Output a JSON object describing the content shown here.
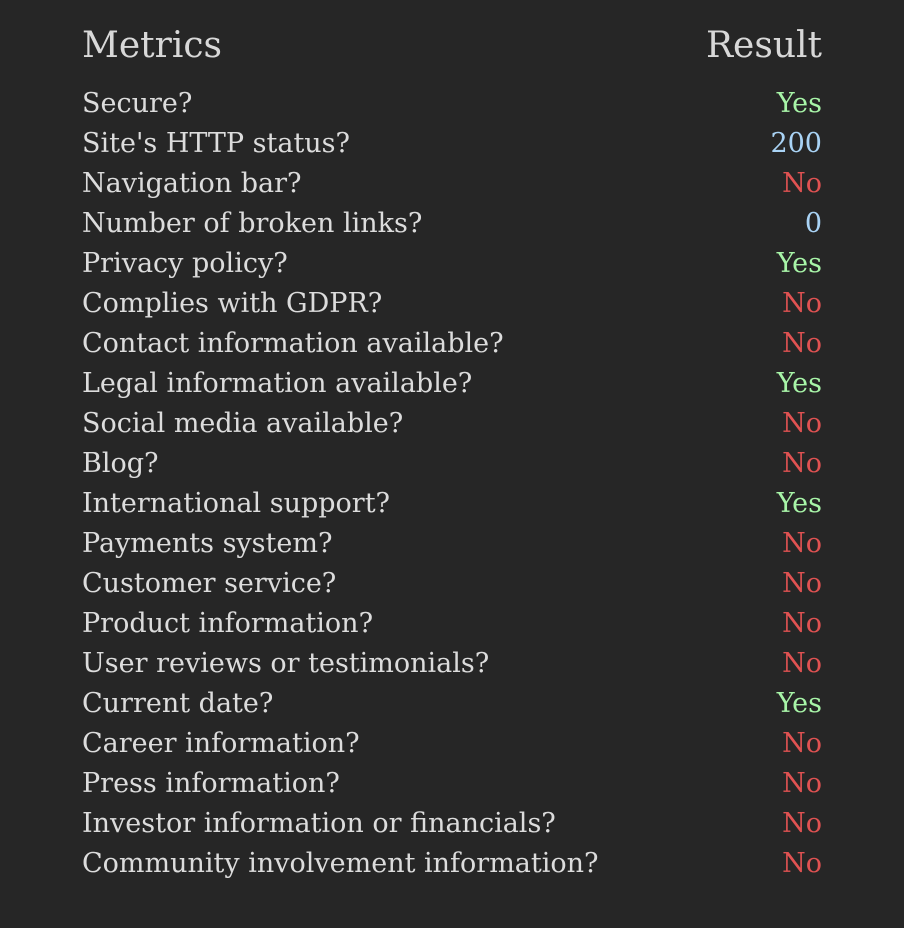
{
  "header": {
    "metrics_label": "Metrics",
    "result_label": "Result"
  },
  "colors": {
    "background": "#262626",
    "text": "#dcdcdc",
    "yes": "#a8f5a8",
    "no": "#e05252",
    "number": "#a9d3f5"
  },
  "rows": [
    {
      "metric": "Secure?",
      "result": "Yes",
      "kind": "yes"
    },
    {
      "metric": "Site's HTTP status?",
      "result": "200",
      "kind": "num"
    },
    {
      "metric": "Navigation bar?",
      "result": "No",
      "kind": "no"
    },
    {
      "metric": "Number of broken links?",
      "result": "0",
      "kind": "num"
    },
    {
      "metric": "Privacy policy?",
      "result": "Yes",
      "kind": "yes"
    },
    {
      "metric": "Complies with GDPR?",
      "result": "No",
      "kind": "no"
    },
    {
      "metric": "Contact information available?",
      "result": "No",
      "kind": "no"
    },
    {
      "metric": "Legal information available?",
      "result": "Yes",
      "kind": "yes"
    },
    {
      "metric": "Social media available?",
      "result": "No",
      "kind": "no"
    },
    {
      "metric": "Blog?",
      "result": "No",
      "kind": "no"
    },
    {
      "metric": "International support?",
      "result": "Yes",
      "kind": "yes"
    },
    {
      "metric": "Payments system?",
      "result": "No",
      "kind": "no"
    },
    {
      "metric": "Customer service?",
      "result": "No",
      "kind": "no"
    },
    {
      "metric": "Product information?",
      "result": "No",
      "kind": "no"
    },
    {
      "metric": "User reviews or testimonials?",
      "result": "No",
      "kind": "no"
    },
    {
      "metric": "Current date?",
      "result": "Yes",
      "kind": "yes"
    },
    {
      "metric": "Career information?",
      "result": "No",
      "kind": "no"
    },
    {
      "metric": "Press information?",
      "result": "No",
      "kind": "no"
    },
    {
      "metric": "Investor information or financials?",
      "result": "No",
      "kind": "no"
    },
    {
      "metric": "Community involvement information?",
      "result": "No",
      "kind": "no"
    }
  ]
}
